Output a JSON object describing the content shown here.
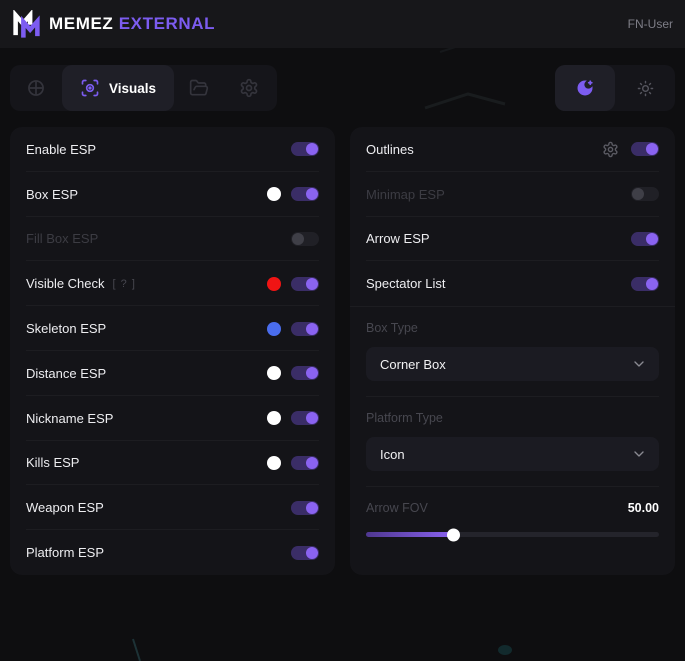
{
  "header": {
    "brand_primary": "MEMEZ",
    "brand_accent": "EXTERNAL",
    "user_label": "FN-User"
  },
  "nav": {
    "tabs": [
      {
        "id": "aim",
        "icon": "crosshair-icon"
      },
      {
        "id": "visuals",
        "icon": "scan-eye-icon",
        "label": "Visuals",
        "active": true
      },
      {
        "id": "configs",
        "icon": "folder-icon"
      },
      {
        "id": "settings",
        "icon": "gear-icon"
      }
    ],
    "theme_toggle": {
      "options": [
        "dark",
        "light"
      ],
      "selected": "dark"
    }
  },
  "colors": {
    "accent": "#7c5cf0",
    "toggle_on_track": "#3a2d66",
    "toggle_on_knob": "#8a63f0",
    "swatch_white": "#ffffff",
    "swatch_red": "#f01414",
    "swatch_blue": "#4a6ded"
  },
  "panels": {
    "left": {
      "rows": [
        {
          "label": "Enable ESP",
          "toggle": true
        },
        {
          "label": "Box ESP",
          "color": "#ffffff",
          "toggle": true
        },
        {
          "label": "Fill Box ESP",
          "toggle": false,
          "disabled": true
        },
        {
          "label": "Visible Check",
          "hint": "[ ? ]",
          "color": "#f01414",
          "toggle": true
        },
        {
          "label": "Skeleton ESP",
          "color": "#4a6ded",
          "toggle": true
        },
        {
          "label": "Distance ESP",
          "color": "#ffffff",
          "toggle": true
        },
        {
          "label": "Nickname ESP",
          "color": "#ffffff",
          "toggle": true
        },
        {
          "label": "Kills ESP",
          "color": "#ffffff",
          "toggle": true
        },
        {
          "label": "Weapon ESP",
          "toggle": true
        },
        {
          "label": "Platform ESP",
          "toggle": true
        }
      ]
    },
    "right": {
      "rows": [
        {
          "label": "Outlines",
          "has_settings_icon": true,
          "toggle": true
        },
        {
          "label": "Minimap ESP",
          "toggle": false,
          "disabled": true
        },
        {
          "label": "Arrow ESP",
          "toggle": true
        },
        {
          "label": "Spectator List",
          "toggle": true
        }
      ],
      "box_type": {
        "label": "Box Type",
        "value": "Corner Box"
      },
      "platform_type": {
        "label": "Platform Type",
        "value": "Icon"
      },
      "arrow_fov": {
        "label": "Arrow FOV",
        "value": "50.00",
        "fill_percent": 30
      }
    }
  }
}
